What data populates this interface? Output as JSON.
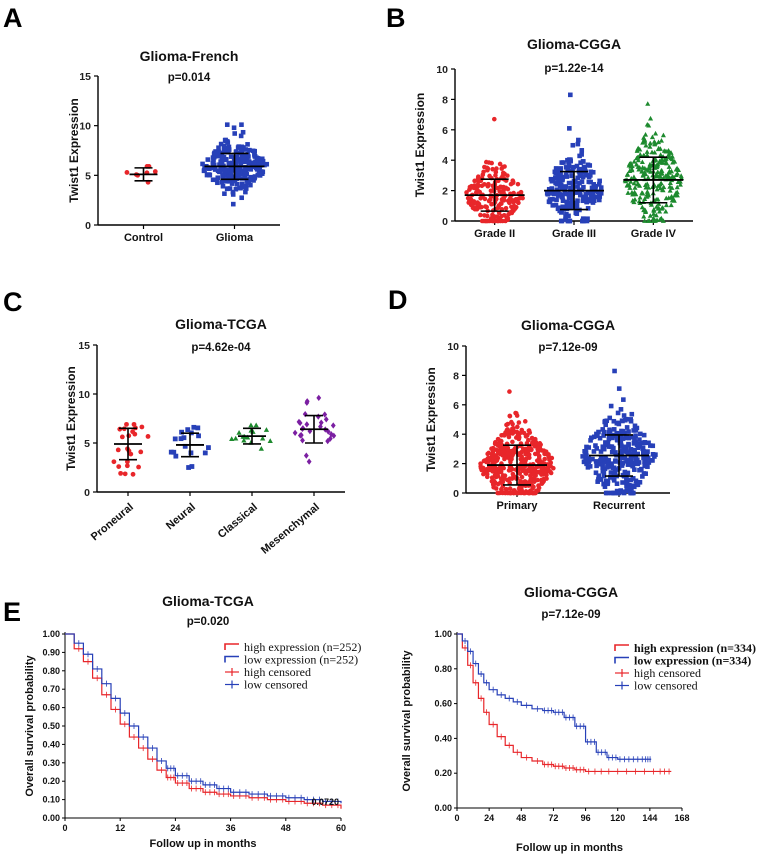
{
  "panel_letters": [
    "A",
    "B",
    "C",
    "D",
    "E"
  ],
  "colors": {
    "red": "#e8262a",
    "blue": "#2740b8",
    "green": "#1d8a2e",
    "purple": "#7b1fa2",
    "axis": "#000000"
  },
  "chart_data": [
    {
      "id": "A",
      "type": "scatter",
      "title": "Glioma-French",
      "pvalue": "p=0.014",
      "ylabel": "Twist1 Expression",
      "ylim": [
        0,
        15
      ],
      "yticks": [
        0,
        5,
        10,
        15
      ],
      "groups": [
        {
          "name": "Control",
          "color": "red",
          "marker": "circle",
          "n": 8,
          "mean": 5.1,
          "sd": 0.65,
          "min": 4.2,
          "max": 5.9
        },
        {
          "name": "Glioma",
          "color": "blue",
          "marker": "square",
          "n": 260,
          "mean": 5.9,
          "sd": 1.3,
          "min": 2.0,
          "max": 10.1
        }
      ]
    },
    {
      "id": "B",
      "type": "scatter",
      "title": "Glioma-CGGA",
      "pvalue": "p=1.22e-14",
      "ylabel": "Twist1 Expression",
      "ylim": [
        0,
        10
      ],
      "yticks": [
        0,
        2,
        4,
        6,
        8,
        10
      ],
      "groups": [
        {
          "name": "Grade II",
          "color": "red",
          "marker": "circle",
          "n": 200,
          "mean": 1.7,
          "sd": 1.05,
          "min": 0,
          "max": 6.7
        },
        {
          "name": "Grade III",
          "color": "blue",
          "marker": "square",
          "n": 220,
          "mean": 2.0,
          "sd": 1.25,
          "min": 0,
          "max": 8.3
        },
        {
          "name": "Grade IV",
          "color": "green",
          "marker": "triangle",
          "n": 260,
          "mean": 2.7,
          "sd": 1.5,
          "min": 0,
          "max": 7.7
        }
      ]
    },
    {
      "id": "C",
      "type": "scatter",
      "title": "Glioma-TCGA",
      "pvalue": "p=4.62e-04",
      "ylabel": "Twist1 Expression",
      "ylim": [
        0,
        15
      ],
      "yticks": [
        0,
        5,
        10,
        15
      ],
      "rotated_xticks": true,
      "groups": [
        {
          "name": "Proneural",
          "color": "red",
          "marker": "circle",
          "n": 24,
          "mean": 4.9,
          "sd": 1.6,
          "min": 1.8,
          "max": 6.9
        },
        {
          "name": "Neural",
          "color": "blue",
          "marker": "square",
          "n": 18,
          "mean": 4.8,
          "sd": 1.2,
          "min": 2.5,
          "max": 6.6
        },
        {
          "name": "Classical",
          "color": "green",
          "marker": "triangle",
          "n": 16,
          "mean": 5.7,
          "sd": 0.8,
          "min": 4.3,
          "max": 6.8
        },
        {
          "name": "Mesenchymal",
          "color": "purple",
          "marker": "diamond",
          "n": 28,
          "mean": 6.4,
          "sd": 1.4,
          "min": 3.0,
          "max": 9.6
        }
      ]
    },
    {
      "id": "D",
      "type": "scatter",
      "title": "Glioma-CGGA",
      "pvalue": "p=7.12e-09",
      "ylabel": "Twist1 Expression",
      "ylim": [
        0,
        10
      ],
      "yticks": [
        0,
        2,
        4,
        6,
        8,
        10
      ],
      "groups": [
        {
          "name": "Primary",
          "color": "red",
          "marker": "circle",
          "n": 420,
          "mean": 1.9,
          "sd": 1.35,
          "min": 0,
          "max": 6.9
        },
        {
          "name": "Recurrent",
          "color": "blue",
          "marker": "square",
          "n": 300,
          "mean": 2.55,
          "sd": 1.4,
          "min": 0,
          "max": 8.3
        }
      ]
    },
    {
      "id": "E1",
      "type": "line",
      "title": "Glioma-TCGA",
      "pvalue": "p=0.020",
      "xlabel": "Follow up in months",
      "ylabel": "Overall survival probability",
      "xlim": [
        0,
        60
      ],
      "ylim": [
        0,
        1
      ],
      "xticks": [
        0,
        12,
        24,
        36,
        48,
        60
      ],
      "yticks": [
        "0.00",
        "0.10",
        "0.20",
        "0.30",
        "0.40",
        "0.50",
        "0.60",
        "0.70",
        "0.80",
        "0.90",
        "1.00"
      ],
      "legend": [
        "high expression (n=252)",
        "low expression (n=252)",
        "high censored",
        "low censored"
      ],
      "small_annotation": "0.0720",
      "series": [
        {
          "name": "high expression (n=252)",
          "color": "red",
          "x": [
            0,
            2,
            4,
            6,
            8,
            10,
            12,
            14,
            16,
            18,
            20,
            22,
            24,
            27,
            30,
            33,
            36,
            40,
            44,
            48,
            52,
            56,
            60
          ],
          "y": [
            1.0,
            0.92,
            0.85,
            0.76,
            0.67,
            0.59,
            0.51,
            0.44,
            0.38,
            0.32,
            0.26,
            0.22,
            0.19,
            0.16,
            0.14,
            0.13,
            0.12,
            0.11,
            0.1,
            0.09,
            0.08,
            0.07,
            0.05
          ]
        },
        {
          "name": "low expression (n=252)",
          "color": "blue",
          "x": [
            0,
            2,
            4,
            6,
            8,
            10,
            12,
            14,
            16,
            18,
            20,
            22,
            24,
            27,
            30,
            33,
            36,
            40,
            44,
            48,
            52,
            56,
            60
          ],
          "y": [
            1.0,
            0.95,
            0.89,
            0.81,
            0.73,
            0.65,
            0.57,
            0.5,
            0.44,
            0.38,
            0.31,
            0.27,
            0.23,
            0.2,
            0.18,
            0.16,
            0.14,
            0.13,
            0.12,
            0.11,
            0.1,
            0.09,
            0.08
          ]
        }
      ]
    },
    {
      "id": "E2",
      "type": "line",
      "title": "Glioma-CGGA",
      "pvalue": "p=7.12e-09",
      "xlabel": "Follow up in months",
      "ylabel": "Overall survival probability",
      "xlim": [
        0,
        168
      ],
      "ylim": [
        0,
        1
      ],
      "xticks": [
        0,
        24,
        48,
        72,
        96,
        120,
        144,
        168
      ],
      "yticks": [
        "0.00",
        "0.20",
        "0.40",
        "0.60",
        "0.80",
        "1.00"
      ],
      "legend": [
        "high expression (n=334)",
        "low expression (n=334)",
        "high censored",
        "low censored"
      ],
      "series": [
        {
          "name": "high expression (n=334)",
          "color": "red",
          "x": [
            0,
            4,
            8,
            12,
            16,
            20,
            24,
            30,
            36,
            42,
            48,
            56,
            64,
            72,
            80,
            88,
            96,
            110,
            130,
            150,
            160
          ],
          "y": [
            1.0,
            0.92,
            0.82,
            0.72,
            0.63,
            0.55,
            0.48,
            0.41,
            0.36,
            0.32,
            0.29,
            0.27,
            0.25,
            0.24,
            0.23,
            0.22,
            0.21,
            0.21,
            0.21,
            0.21,
            0.21
          ]
        },
        {
          "name": "low expression (n=334)",
          "color": "blue",
          "x": [
            0,
            4,
            8,
            12,
            16,
            20,
            24,
            30,
            36,
            42,
            48,
            56,
            64,
            72,
            80,
            88,
            96,
            104,
            112,
            120,
            130,
            140,
            145
          ],
          "y": [
            1.0,
            0.96,
            0.9,
            0.83,
            0.77,
            0.72,
            0.68,
            0.65,
            0.63,
            0.61,
            0.59,
            0.57,
            0.56,
            0.55,
            0.52,
            0.47,
            0.38,
            0.32,
            0.29,
            0.28,
            0.28,
            0.28,
            0.28
          ]
        }
      ]
    }
  ]
}
